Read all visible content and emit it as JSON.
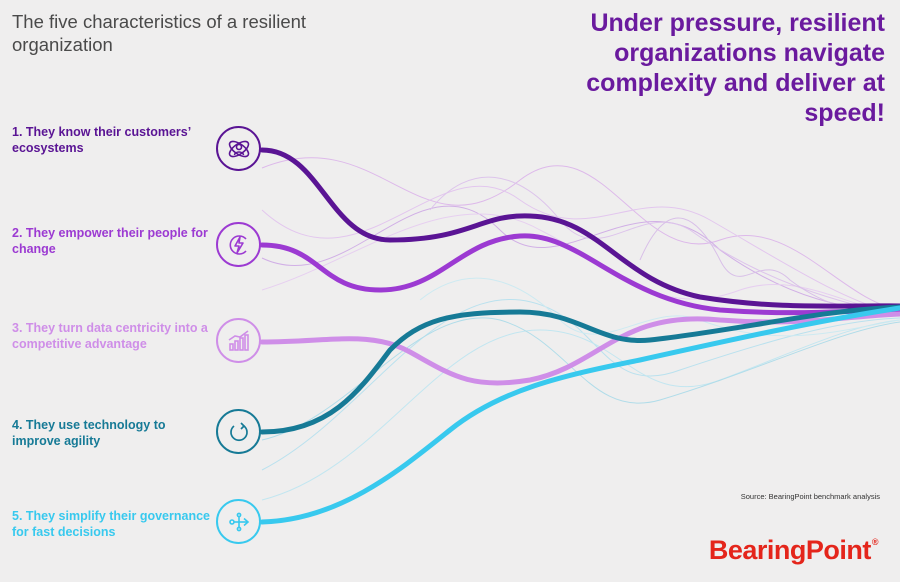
{
  "subtitle": "The five characteristics of a resilient organization",
  "headline": "Under pressure, resilient organizations navigate complexity and deliver at speed!",
  "items": [
    {
      "label": "1. They know their customers’ ecosystems",
      "icon": "customer-ecosystem-icon",
      "color": "#5a1494"
    },
    {
      "label": "2. They empower their people for change",
      "icon": "lightning-empower-icon",
      "color": "#9c3ad2"
    },
    {
      "label": "3. They turn data centricity into a competitive advantage",
      "icon": "data-chart-icon",
      "color": "#cf8ee8"
    },
    {
      "label": "4. They use technology to improve agility",
      "icon": "cycle-agility-icon",
      "color": "#167a96"
    },
    {
      "label": "5. They simplify their governance for fast decisions",
      "icon": "decision-flow-icon",
      "color": "#38c9ee"
    }
  ],
  "source": "Source: BearingPoint benchmark analysis",
  "brand": {
    "name": "BearingPoint",
    "mark": "®",
    "color": "#e4251b"
  }
}
